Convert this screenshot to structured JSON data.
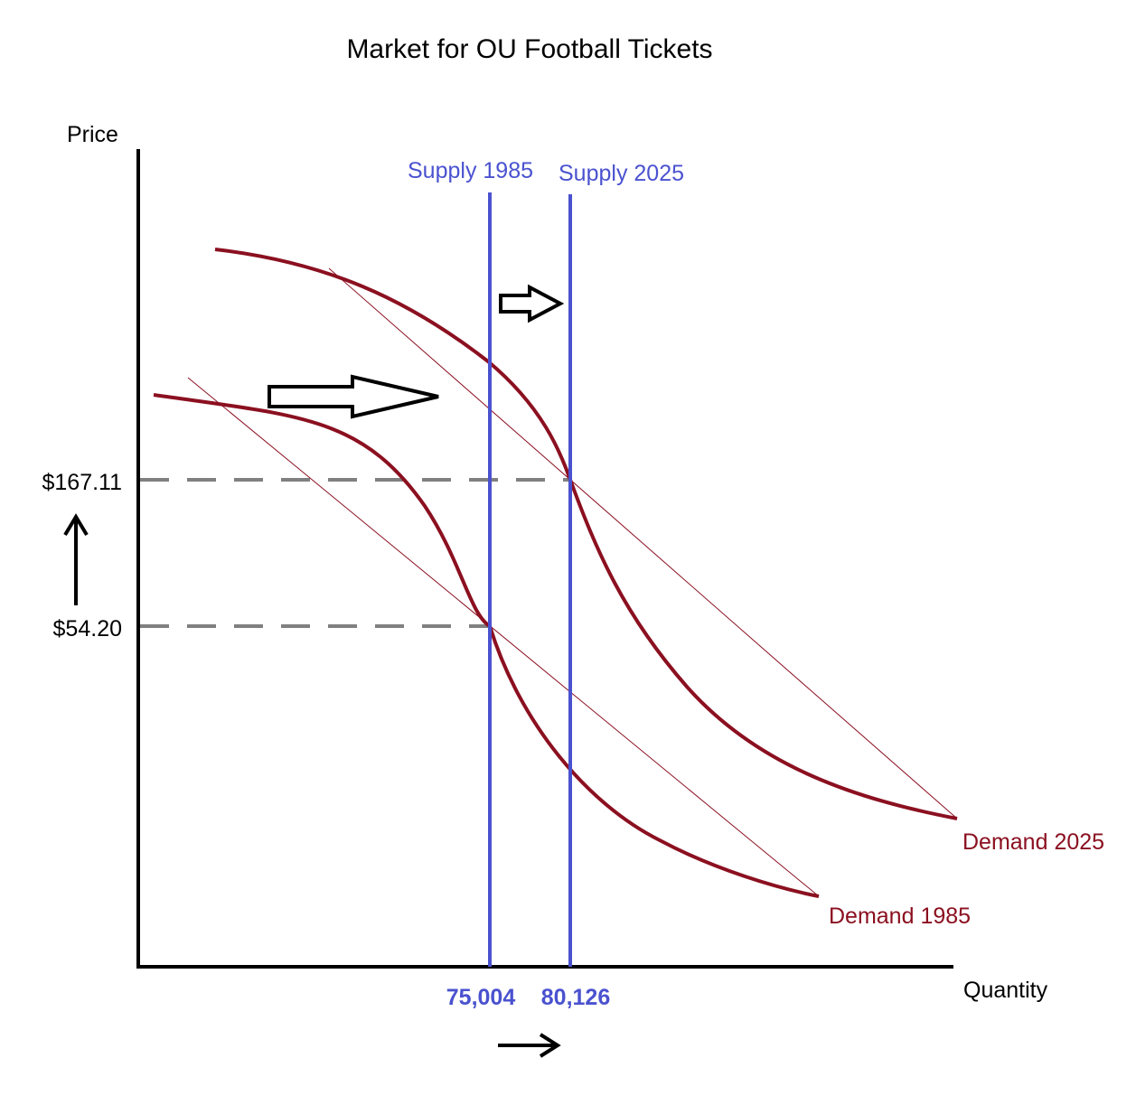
{
  "title": "Market for OU Football Tickets",
  "y_axis_label": "Price",
  "x_axis_label": "Quantity",
  "price_labels": [
    "$167.11",
    "$54.20"
  ],
  "quantity_labels": [
    "75,004",
    "80,126"
  ],
  "supply_labels": [
    "Supply 1985",
    "Supply 2025"
  ],
  "demand_labels": [
    "Demand 1985",
    "Demand 2025"
  ],
  "colors": {
    "supply": "#4a52cf",
    "demand": "#8b1020",
    "guide": "#808080",
    "axis": "#000000"
  }
}
